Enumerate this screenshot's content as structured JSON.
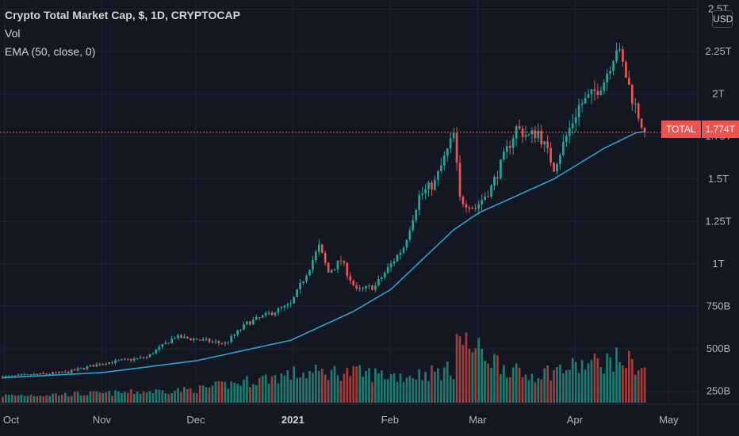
{
  "legend": {
    "title": "Crypto Total Market Cap, $, 1D, CRYPTOCAP",
    "vol_label": "Vol",
    "ema_label": "EMA (50, close, 0)"
  },
  "currency_badge": "USD",
  "price_tag": {
    "symbol": "TOTAL",
    "value": "1.774T"
  },
  "colors": {
    "background": "#131722",
    "up": "#26a69a",
    "down": "#ef5350",
    "vol_up": "#1f7a70",
    "vol_down": "#a13d3c",
    "ema": "#2ea1d1",
    "grid": "#1f2533"
  },
  "chart_data": {
    "type": "candlestick",
    "symbol": "TOTAL",
    "timeframe": "1D",
    "last_price": 1774000000000,
    "y_ticks": [
      {
        "label": "2.5T",
        "value": 2.5
      },
      {
        "label": "2.25T",
        "value": 2.25
      },
      {
        "label": "2T",
        "value": 2.0
      },
      {
        "label": "1.75T",
        "value": 1.75
      },
      {
        "label": "1.5T",
        "value": 1.5
      },
      {
        "label": "1.25T",
        "value": 1.25
      },
      {
        "label": "1T",
        "value": 1.0
      },
      {
        "label": "750B",
        "value": 0.75
      },
      {
        "label": "500B",
        "value": 0.5
      },
      {
        "label": "250B",
        "value": 0.25
      }
    ],
    "x_ticks": [
      "Oct",
      "Nov",
      "Dec",
      "2021",
      "Feb",
      "Mar",
      "Apr",
      "May"
    ],
    "y_unit": "USD (trillions)",
    "x_range": [
      "2020-09-30",
      "2021-04-23"
    ],
    "price_anchors": [
      {
        "date": "2020-10-01",
        "close": 0.335
      },
      {
        "date": "2020-10-20",
        "close": 0.36
      },
      {
        "date": "2020-11-01",
        "close": 0.415
      },
      {
        "date": "2020-11-15",
        "close": 0.45
      },
      {
        "date": "2020-11-24",
        "close": 0.57
      },
      {
        "date": "2020-12-01",
        "close": 0.555
      },
      {
        "date": "2020-12-10",
        "close": 0.53
      },
      {
        "date": "2020-12-17",
        "close": 0.65
      },
      {
        "date": "2020-12-31",
        "close": 0.76
      },
      {
        "date": "2021-01-03",
        "close": 0.87
      },
      {
        "date": "2021-01-09",
        "close": 1.1
      },
      {
        "date": "2021-01-12",
        "close": 0.95
      },
      {
        "date": "2021-01-16",
        "close": 1.02
      },
      {
        "date": "2021-01-21",
        "close": 0.84
      },
      {
        "date": "2021-01-27",
        "close": 0.87
      },
      {
        "date": "2021-02-05",
        "close": 1.1
      },
      {
        "date": "2021-02-10",
        "close": 1.4
      },
      {
        "date": "2021-02-15",
        "close": 1.48
      },
      {
        "date": "2021-02-21",
        "close": 1.76
      },
      {
        "date": "2021-02-23",
        "close": 1.38
      },
      {
        "date": "2021-02-28",
        "close": 1.33
      },
      {
        "date": "2021-03-05",
        "close": 1.45
      },
      {
        "date": "2021-03-13",
        "close": 1.8
      },
      {
        "date": "2021-03-17",
        "close": 1.75
      },
      {
        "date": "2021-03-20",
        "close": 1.78
      },
      {
        "date": "2021-03-25",
        "close": 1.57
      },
      {
        "date": "2021-04-02",
        "close": 1.93
      },
      {
        "date": "2021-04-06",
        "close": 1.99
      },
      {
        "date": "2021-04-10",
        "close": 2.08
      },
      {
        "date": "2021-04-14",
        "close": 2.28
      },
      {
        "date": "2021-04-16",
        "close": 2.17
      },
      {
        "date": "2021-04-19",
        "close": 1.98
      },
      {
        "date": "2021-04-23",
        "close": 1.774
      }
    ],
    "ema_anchors": [
      {
        "date": "2020-10-01",
        "value": 0.33
      },
      {
        "date": "2020-11-01",
        "value": 0.36
      },
      {
        "date": "2020-12-01",
        "value": 0.43
      },
      {
        "date": "2020-12-31",
        "value": 0.55
      },
      {
        "date": "2021-01-20",
        "value": 0.72
      },
      {
        "date": "2021-02-01",
        "value": 0.85
      },
      {
        "date": "2021-02-21",
        "value": 1.2
      },
      {
        "date": "2021-03-01",
        "value": 1.3
      },
      {
        "date": "2021-03-25",
        "value": 1.5
      },
      {
        "date": "2021-04-10",
        "value": 1.68
      },
      {
        "date": "2021-04-20",
        "value": 1.77
      },
      {
        "date": "2021-04-23",
        "value": 1.78
      }
    ],
    "volume_anchors": [
      {
        "date": "2020-10-01",
        "value": 0.07
      },
      {
        "date": "2020-11-01",
        "value": 0.09
      },
      {
        "date": "2020-12-01",
        "value": 0.13
      },
      {
        "date": "2021-01-01",
        "value": 0.28
      },
      {
        "date": "2021-01-15",
        "value": 0.3
      },
      {
        "date": "2021-02-05",
        "value": 0.26
      },
      {
        "date": "2021-02-21",
        "value": 0.32
      },
      {
        "date": "2021-02-22",
        "value": 0.62
      },
      {
        "date": "2021-03-15",
        "value": 0.26
      },
      {
        "date": "2021-04-14",
        "value": 0.42
      },
      {
        "date": "2021-04-18",
        "value": 0.4
      },
      {
        "date": "2021-04-23",
        "value": 0.32
      }
    ]
  }
}
